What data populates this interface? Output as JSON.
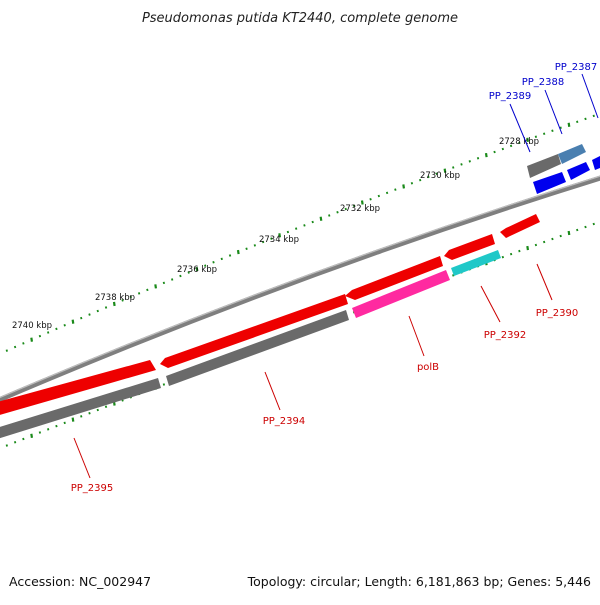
{
  "title": "Pseudomonas putida KT2440, complete genome",
  "footer": {
    "accession": "Accession: NC_002947",
    "summary": "Topology: circular; Length: 6,181,863 bp; Genes: 5,446"
  },
  "ticks": [
    {
      "label": "2728 kbp"
    },
    {
      "label": "2730 kbp"
    },
    {
      "label": "2732 kbp"
    },
    {
      "label": "2734 kbp"
    },
    {
      "label": "2736 kbp"
    },
    {
      "label": "2738 kbp"
    },
    {
      "label": "2740 kbp"
    }
  ],
  "genes": [
    {
      "name": "PP_2387",
      "strand": "forward",
      "color": "#0000cc"
    },
    {
      "name": "PP_2388",
      "strand": "forward",
      "color": "#0000cc"
    },
    {
      "name": "PP_2389",
      "strand": "forward",
      "color": "#0000cc"
    },
    {
      "name": "PP_2390",
      "strand": "reverse",
      "color": "#cc0000"
    },
    {
      "name": "PP_2392",
      "strand": "reverse",
      "color": "#cc0000"
    },
    {
      "name": "polB",
      "strand": "reverse",
      "color": "#cc0000"
    },
    {
      "name": "PP_2394",
      "strand": "reverse",
      "color": "#cc0000"
    },
    {
      "name": "PP_2395",
      "strand": "reverse",
      "color": "#cc0000"
    }
  ],
  "colors": {
    "backbone": "#8a8a8a",
    "cds_reverse": "#ee0000",
    "cds_forward": "#0000ee",
    "gene_gray": "#6a6a6a",
    "rrna_like": "#ff2aa0",
    "cyan_feature": "#20c8c8",
    "steelblue_feature": "#4a7fb0",
    "tick": "#1a8a1a"
  }
}
